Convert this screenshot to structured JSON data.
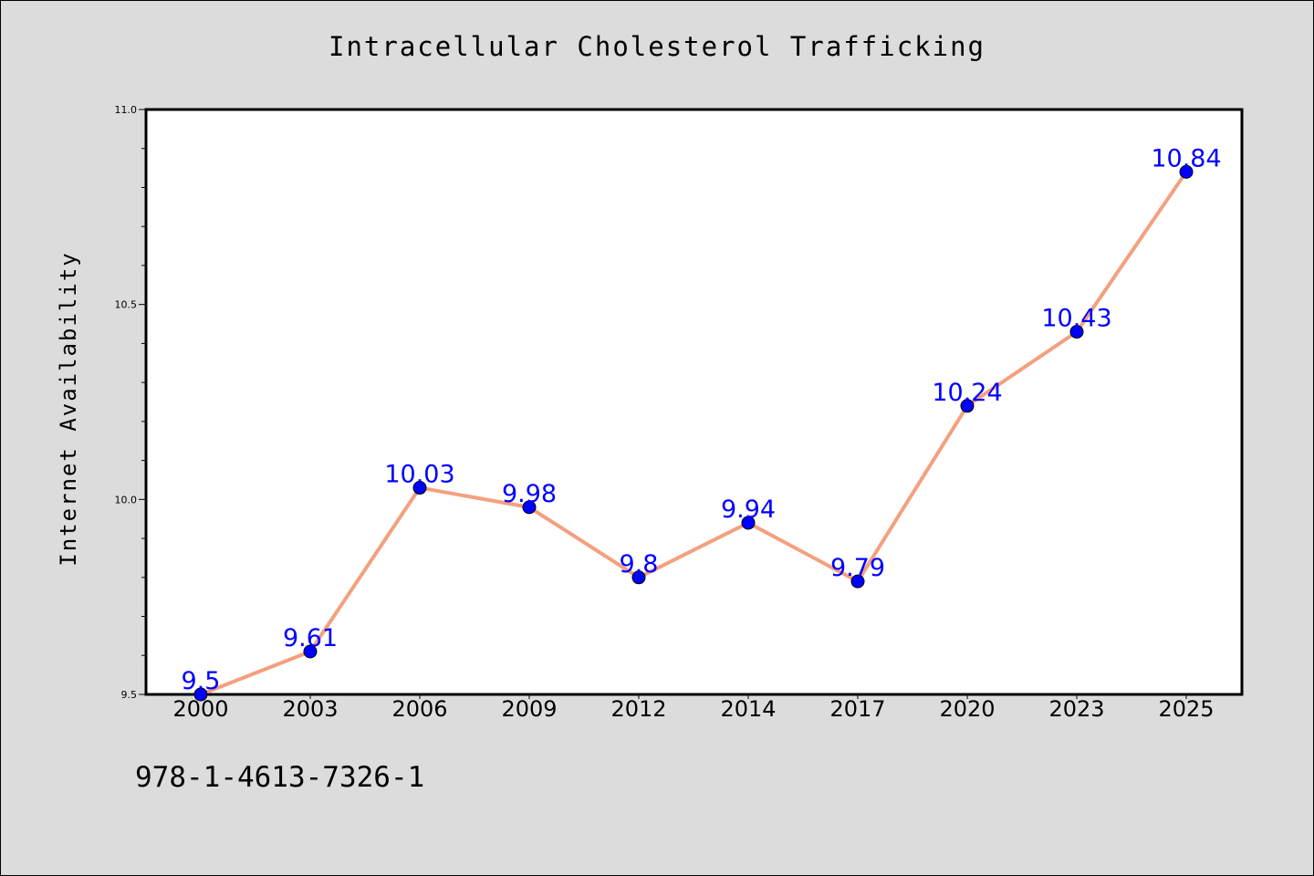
{
  "chart_data": {
    "type": "line",
    "title": "Intracellular Cholesterol Trafficking",
    "xlabel": "",
    "ylabel": "Internet Availability",
    "categories": [
      "2000",
      "2003",
      "2006",
      "2009",
      "2012",
      "2014",
      "2017",
      "2020",
      "2023",
      "2025"
    ],
    "series": [
      {
        "values": [
          9.5,
          9.61,
          10.03,
          9.98,
          9.8,
          9.94,
          9.79,
          10.24,
          10.43,
          10.84
        ]
      }
    ],
    "data_labels": [
      "9.5",
      "9.61",
      "10.03",
      "9.98",
      "9.8",
      "9.94",
      "9.79",
      "10.24",
      "10.43",
      "10.84"
    ],
    "ylim": [
      9.5,
      11.0
    ],
    "y_major_ticks": [
      "9.5",
      "10.0",
      "10.5",
      "11.0"
    ],
    "y_minor_step": 0.1,
    "grid": false,
    "legend": "none",
    "line_color": "#f4a07e",
    "marker_color": "#0000ff",
    "label_color": "#0000ff"
  },
  "footer": {
    "isbn": "978-1-4613-7326-1"
  }
}
